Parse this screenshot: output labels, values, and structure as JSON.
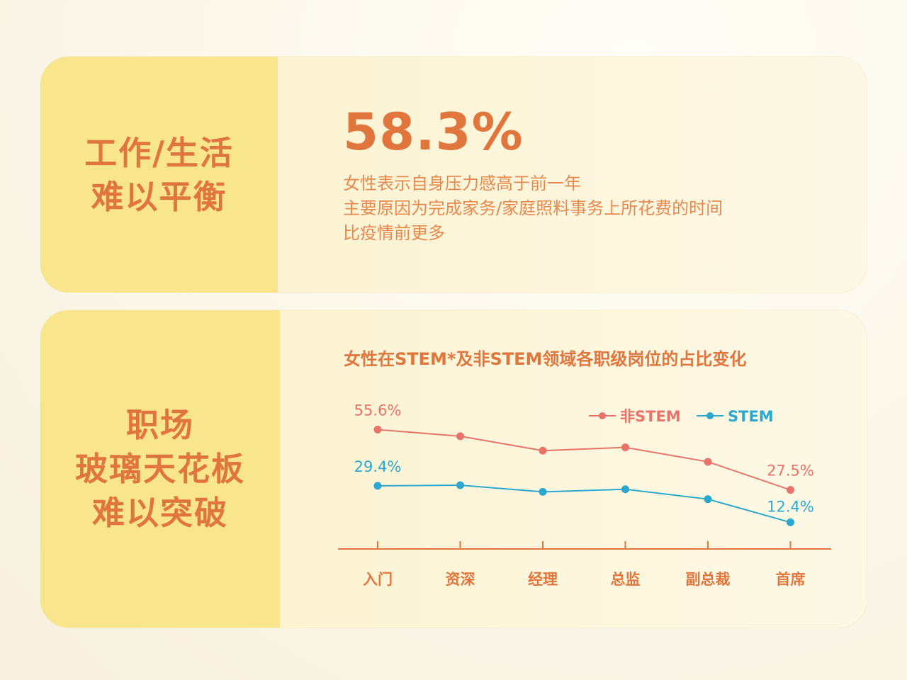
{
  "section1": {
    "title_lines": [
      "工作/生活",
      "难以平衡"
    ],
    "stat_value": "58.3%",
    "desc_lines": [
      "女性表示自身压力感高于前一年",
      "主要原因为完成家务/家庭照料事务上所花费的时间",
      "比疫情前更多"
    ]
  },
  "section2": {
    "title_lines": [
      "职场",
      "玻璃天花板",
      "难以突破"
    ]
  },
  "colors": {
    "accent": "#e0763d",
    "left_panel": "#f8e58c",
    "non_stem": "#e8736a",
    "stem": "#2ba8cf"
  },
  "chart_data": {
    "type": "line",
    "title": "女性在STEM*及非STEM领域各职级岗位的占比变化",
    "categories": [
      "入门",
      "资深",
      "经理",
      "总监",
      "副总裁",
      "首席"
    ],
    "ylim": [
      0,
      65
    ],
    "legend_position": "top-right",
    "grid": false,
    "series": [
      {
        "name": "非STEM",
        "color": "#e8736a",
        "values": [
          55.6,
          52.5,
          45.8,
          47.3,
          40.6,
          27.5
        ],
        "labels": {
          "0": "55.6%",
          "5": "27.5%"
        }
      },
      {
        "name": "STEM",
        "color": "#2ba8cf",
        "values": [
          29.4,
          29.7,
          26.6,
          27.8,
          23.2,
          12.4
        ],
        "labels": {
          "0": "29.4%",
          "5": "12.4%"
        }
      }
    ]
  }
}
